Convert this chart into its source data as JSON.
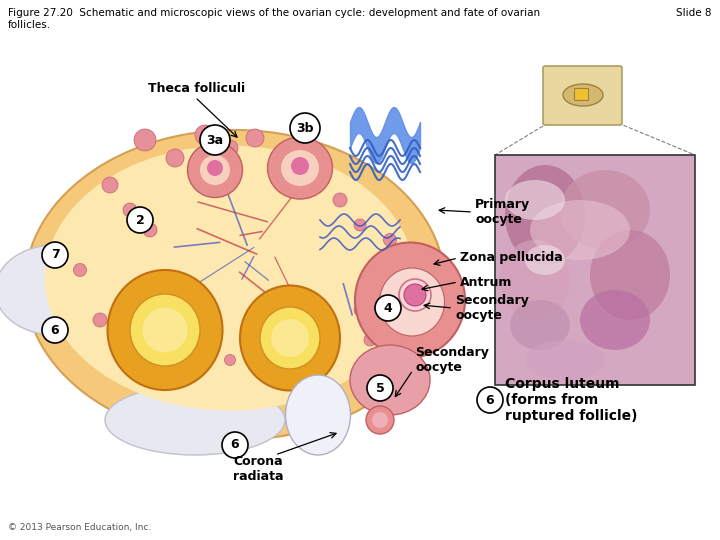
{
  "title_text": "Figure 27.20  Schematic and microscopic views of the ovarian cycle: development and fate of ovarian\nfollicles.",
  "slide_label": "Slide 8",
  "title_fontsize": 7.5,
  "slide_fontsize": 7.5,
  "background_color": "#ffffff",
  "copyright_text": "© 2013 Pearson Education, Inc.",
  "label_fontsize": 8,
  "bold_fontsize": 9,
  "corpus_label": "Corpus luteum\n(forms from\nruptured follicle)"
}
